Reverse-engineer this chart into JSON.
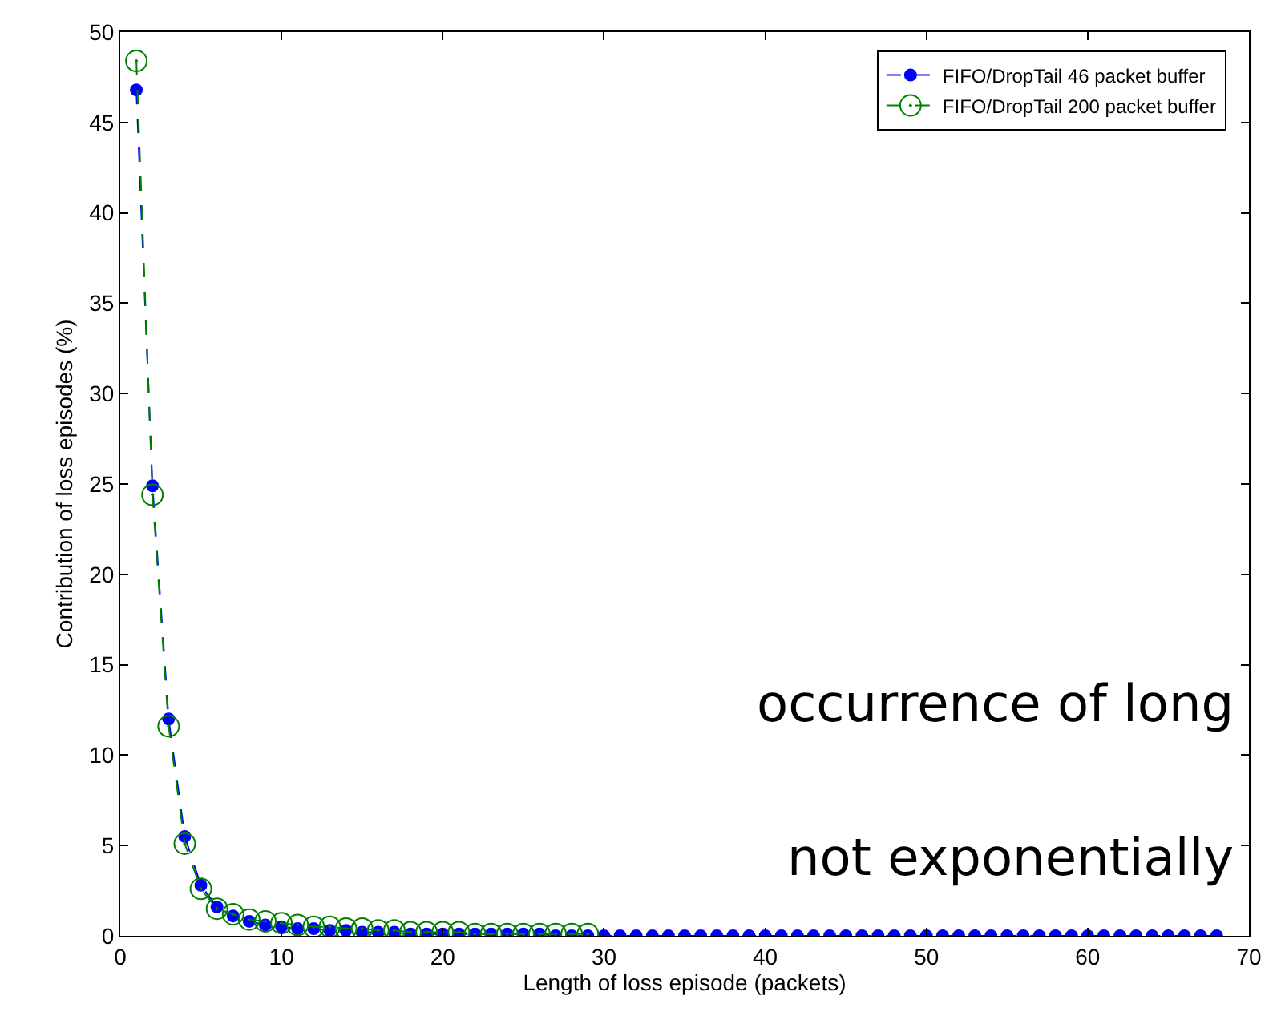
{
  "chart_data": {
    "type": "line",
    "xlabel": "Length of loss episode (packets)",
    "ylabel": "Contribution of loss episodes (%)",
    "xlim": [
      0,
      70
    ],
    "xticks": [
      0,
      10,
      20,
      30,
      40,
      50,
      60,
      70
    ],
    "ylim": [
      0,
      50
    ],
    "yticks": [
      0,
      5,
      10,
      15,
      20,
      25,
      30,
      35,
      40,
      45,
      50
    ],
    "legend": "top right",
    "line_style": "dashed",
    "annotations": [
      "occurrence of long",
      "not exponentially"
    ],
    "series": [
      {
        "name": "FIFO/DropTail 46 packet buffer",
        "color": "#0000ff",
        "marker": "circle",
        "x": [
          1,
          2,
          3,
          4,
          5,
          6,
          7,
          8,
          9,
          10,
          11,
          12,
          13,
          14,
          15,
          16,
          17,
          18,
          19,
          20,
          21,
          22,
          23,
          24,
          25,
          26,
          27,
          28,
          29,
          30,
          31,
          32,
          33,
          34,
          35,
          36,
          37,
          38,
          39,
          40,
          41,
          42,
          43,
          44,
          45,
          46,
          47,
          48,
          49,
          50,
          51,
          52,
          53,
          54,
          55,
          56,
          57,
          58,
          59,
          60,
          61,
          62,
          63,
          64,
          65,
          66,
          67,
          68
        ],
        "values": [
          46.8,
          24.9,
          12.0,
          5.5,
          2.8,
          1.6,
          1.1,
          0.8,
          0.6,
          0.5,
          0.4,
          0.4,
          0.3,
          0.3,
          0.2,
          0.2,
          0.2,
          0.1,
          0.1,
          0.1,
          0.1,
          0.1,
          0.1,
          0.1,
          0.1,
          0.1,
          0,
          0,
          0,
          0,
          0,
          0,
          0,
          0,
          0,
          0,
          0,
          0,
          0,
          0,
          0,
          0,
          0,
          0,
          0,
          0,
          0,
          0,
          0,
          0,
          0,
          0,
          0,
          0,
          0,
          0,
          0,
          0,
          0,
          0,
          0,
          0,
          0,
          0,
          0,
          0,
          0,
          0
        ]
      },
      {
        "name": "FIFO/DropTail 200 packet buffer",
        "color": "#008000",
        "marker": "open circle",
        "x": [
          1,
          2,
          3,
          4,
          5,
          6,
          7,
          8,
          9,
          10,
          11,
          12,
          13,
          14,
          15,
          16,
          17,
          18,
          19,
          20,
          21,
          22,
          23,
          24,
          25,
          26,
          27,
          28,
          29
        ],
        "values": [
          48.4,
          24.4,
          11.6,
          5.1,
          2.6,
          1.5,
          1.2,
          0.9,
          0.8,
          0.7,
          0.6,
          0.5,
          0.5,
          0.4,
          0.4,
          0.3,
          0.3,
          0.2,
          0.2,
          0.2,
          0.2,
          0.1,
          0.1,
          0.1,
          0.1,
          0.1,
          0.1,
          0.1,
          0.1
        ]
      }
    ]
  }
}
